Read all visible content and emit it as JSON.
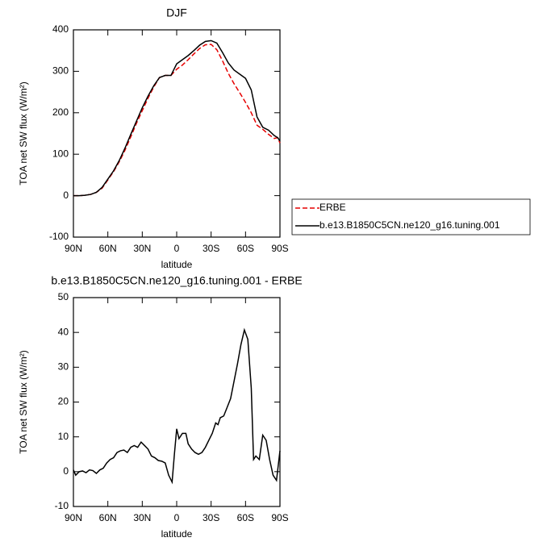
{
  "chart_data": [
    {
      "type": "line",
      "title": "DJF",
      "ylabel": "TOA net SW flux (W/m²)",
      "xlabel": "latitude",
      "x": [
        90,
        85,
        80,
        75,
        70,
        65,
        60,
        55,
        50,
        45,
        40,
        35,
        30,
        25,
        20,
        15,
        10,
        5,
        0,
        -5,
        -10,
        -15,
        -20,
        -25,
        -30,
        -35,
        -40,
        -45,
        -50,
        -55,
        -60,
        -65,
        -70,
        -75,
        -80,
        -85,
        -88,
        -90
      ],
      "series": [
        {
          "name": "ERBE",
          "color": "#e60000",
          "linestyle": "dashed",
          "values": [
            0,
            0,
            1,
            3,
            8,
            18,
            38,
            58,
            82,
            110,
            142,
            175,
            205,
            235,
            262,
            285,
            290,
            290,
            305,
            315,
            328,
            342,
            355,
            364,
            365,
            352,
            325,
            295,
            270,
            248,
            225,
            200,
            170,
            160,
            148,
            138,
            140,
            127
          ]
        },
        {
          "name": "b.e13.B1850C5CN.ne120_g16.tuning.001",
          "color": "#000000",
          "linestyle": "solid",
          "values": [
            0,
            0,
            1,
            3,
            8,
            20,
            40,
            60,
            85,
            115,
            148,
            180,
            212,
            240,
            265,
            285,
            290,
            290,
            318,
            328,
            338,
            350,
            363,
            372,
            374,
            368,
            345,
            320,
            303,
            293,
            283,
            255,
            190,
            165,
            158,
            145,
            140,
            132
          ]
        }
      ],
      "xlim": [
        90,
        -90
      ],
      "xticks": [
        {
          "value": 90,
          "label": "90N"
        },
        {
          "value": 60,
          "label": "60N"
        },
        {
          "value": 30,
          "label": "30N"
        },
        0,
        {
          "value": -30,
          "label": "30S"
        },
        {
          "value": -60,
          "label": "60S"
        },
        {
          "value": -90,
          "label": "90S"
        }
      ],
      "ylim": [
        -100,
        400
      ],
      "yticks": [
        -100,
        0,
        100,
        200,
        300,
        400
      ],
      "legend": "right"
    },
    {
      "type": "line",
      "title": "b.e13.B1850C5CN.ne120_g16.tuning.001 - ERBE",
      "ylabel": "TOA net SW flux (W/m²)",
      "xlabel": "latitude",
      "x": [
        90,
        88,
        85,
        82,
        79,
        76,
        73,
        70,
        67,
        64,
        61,
        58,
        55,
        52,
        49,
        46,
        43,
        40,
        37,
        34,
        31,
        28,
        25,
        22,
        19,
        16,
        13,
        10,
        7,
        4,
        2,
        0,
        -2,
        -5,
        -8,
        -10,
        -13,
        -16,
        -19,
        -22,
        -25,
        -28,
        -31,
        -34,
        -36,
        -38,
        -41,
        -44,
        -47,
        -50,
        -53,
        -56,
        -59,
        -62,
        -65,
        -67,
        -69,
        -72,
        -75,
        -78,
        -81,
        -84,
        -87,
        -90
      ],
      "series": [
        {
          "color": "#000000",
          "linestyle": "solid",
          "values": [
            0.5,
            -1,
            0,
            0.2,
            -0.3,
            0.5,
            0.3,
            -0.5,
            0.5,
            1,
            2.5,
            3.5,
            4,
            5.5,
            6,
            6.2,
            5.5,
            7,
            7.5,
            7,
            8.5,
            7.5,
            6.5,
            4.5,
            4,
            3.2,
            3,
            2.5,
            -1,
            -3,
            5,
            12.3,
            9.5,
            11,
            11,
            8,
            6.5,
            5.5,
            5,
            5.5,
            7,
            9,
            11,
            14,
            13.5,
            15.5,
            16,
            18.5,
            21,
            26,
            31,
            36.5,
            40.7,
            38,
            24,
            3.5,
            4.5,
            3.5,
            10.5,
            9,
            3.5,
            -1,
            -2.5,
            6
          ]
        }
      ],
      "xlim": [
        90,
        -90
      ],
      "xticks": [
        {
          "value": 90,
          "label": "90N"
        },
        {
          "value": 60,
          "label": "60N"
        },
        {
          "value": 30,
          "label": "30N"
        },
        0,
        {
          "value": -30,
          "label": "30S"
        },
        {
          "value": -60,
          "label": "60S"
        },
        {
          "value": -90,
          "label": "90S"
        }
      ],
      "ylim": [
        -10,
        50
      ],
      "yticks": [
        -10,
        0,
        10,
        20,
        30,
        40,
        50
      ]
    }
  ]
}
